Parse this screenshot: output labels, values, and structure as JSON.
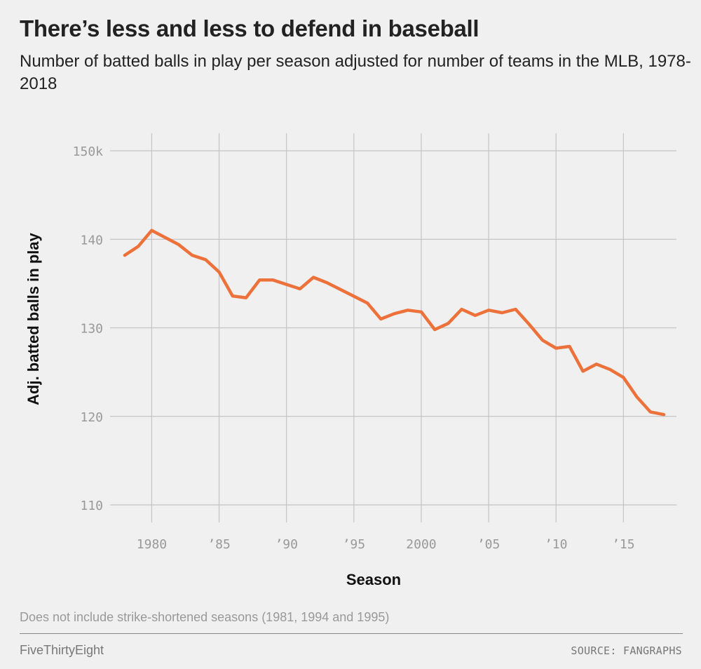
{
  "header": {
    "title": "There’s less and less to defend in baseball",
    "subtitle": "Number of batted balls in play per season adjusted for number of teams in the MLB, 1978-2018"
  },
  "footer": {
    "note": "Does not include strike-shortened seasons (1981, 1994 and 1995)",
    "brand": "FiveThirtyEight",
    "source": "SOURCE: FANGRAPHS"
  },
  "chart_data": {
    "type": "line",
    "xlabel": "Season",
    "ylabel": "Adj. batted balls in play",
    "xlim": [
      1977.8,
      2018.2
    ],
    "ylim": [
      110,
      150
    ],
    "x_ticks": [
      1980,
      1985,
      1990,
      1995,
      2000,
      2005,
      2010,
      2015
    ],
    "x_tick_labels": [
      "1980",
      "’85",
      "’90",
      "’95",
      "2000",
      "’05",
      "’10",
      "’15"
    ],
    "y_ticks": [
      110,
      120,
      130,
      140,
      150
    ],
    "y_tick_labels": [
      "110",
      "120",
      "130",
      "140",
      "150k"
    ],
    "grid": true,
    "line_color": "#ed713a",
    "series": [
      {
        "x": [
          1978,
          1979,
          1980,
          1982,
          1983,
          1984,
          1985,
          1986,
          1987,
          1988,
          1989,
          1990,
          1991,
          1992,
          1993,
          1996,
          1997,
          1998,
          1999,
          2000,
          2001,
          2002,
          2003,
          2004,
          2005,
          2006,
          2007,
          2008,
          2009,
          2010,
          2011,
          2012,
          2013,
          2014,
          2015,
          2016,
          2017,
          2018
        ],
        "values": [
          138.2,
          139.2,
          141.0,
          139.4,
          138.2,
          137.7,
          136.3,
          133.6,
          133.4,
          135.4,
          135.4,
          134.9,
          134.4,
          135.7,
          135.1,
          132.8,
          131.0,
          131.6,
          132.0,
          131.8,
          129.8,
          130.5,
          132.1,
          131.4,
          132.0,
          131.7,
          132.1,
          130.4,
          128.6,
          127.7,
          127.9,
          125.1,
          125.9,
          125.3,
          124.4,
          122.2,
          120.5,
          120.2
        ]
      }
    ]
  }
}
